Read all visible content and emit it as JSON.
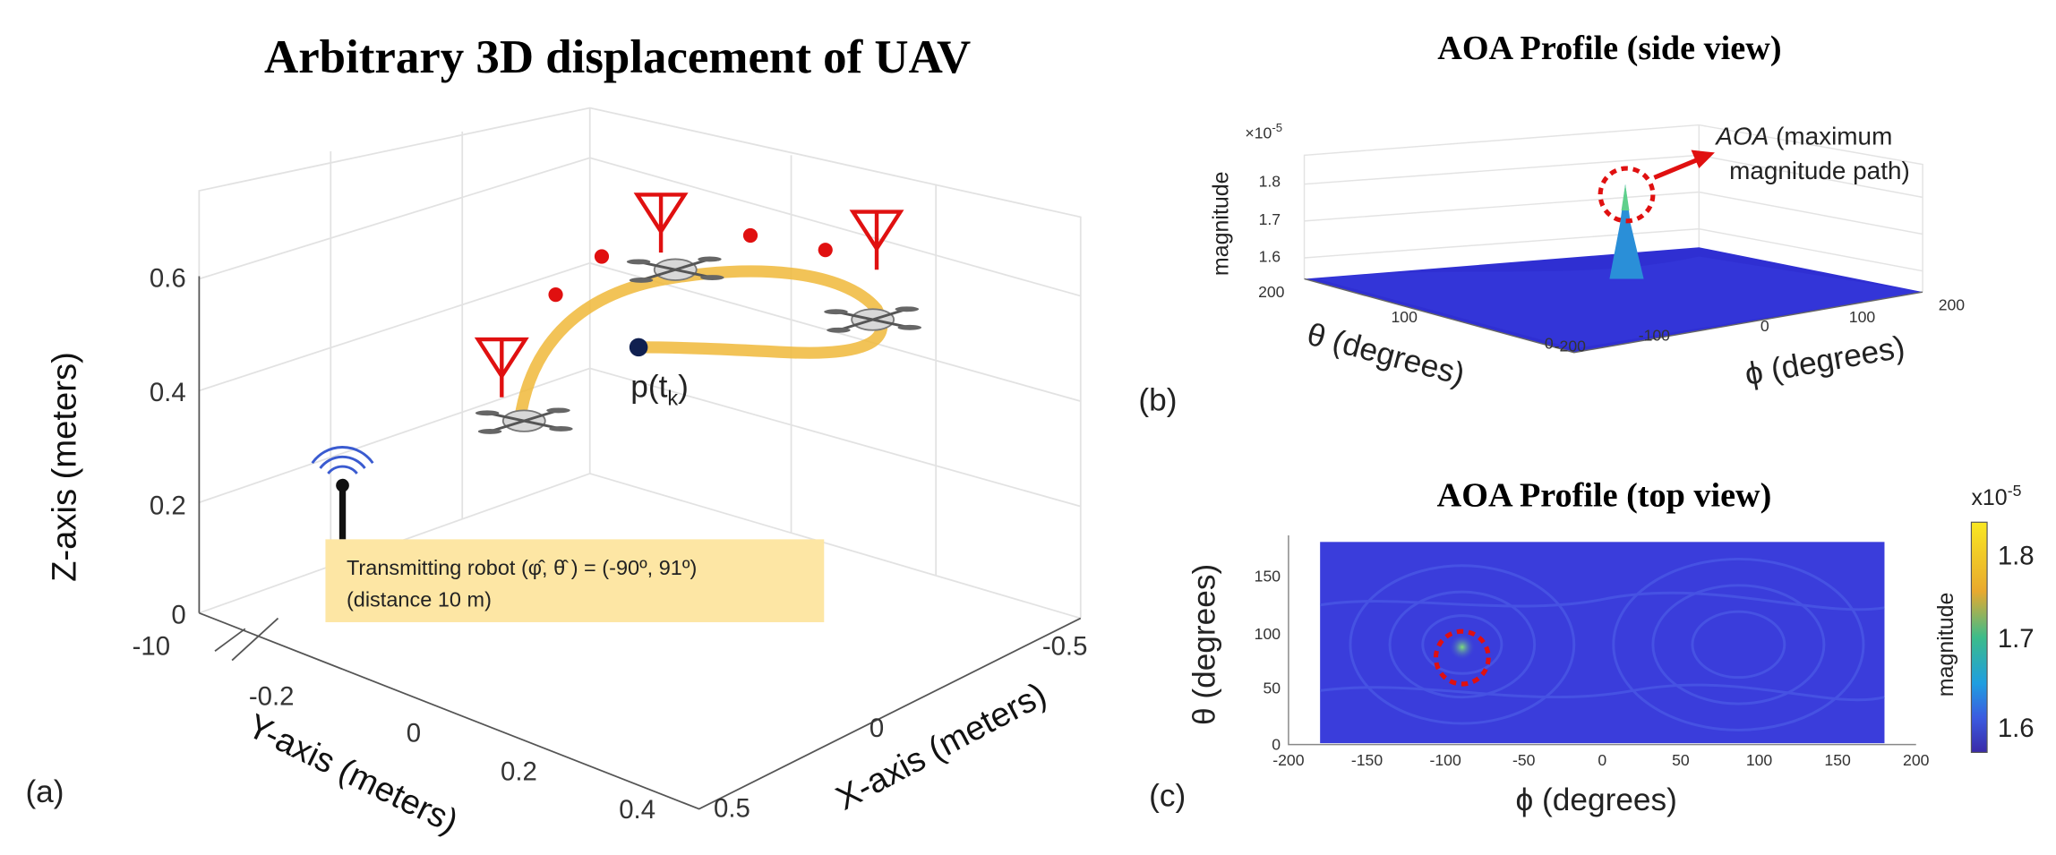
{
  "panel_a": {
    "title": "Arbitrary 3D displacement of UAV",
    "z_ticks": [
      "0.6",
      "0.4",
      "0.2",
      "0"
    ],
    "z_break": "-10",
    "z_label": "Z-axis (meters)",
    "y_ticks": [
      "-0.2",
      "0",
      "0.2",
      "0.4"
    ],
    "y_label": "Y-axis (meters)",
    "x_ticks": [
      "-0.5",
      "0",
      "0.5"
    ],
    "x_label": "X-axis (meters)",
    "position_label": {
      "base": "p(t",
      "sub": "k",
      "close": ")"
    },
    "transmitter_note": [
      "Transmitting robot (φ̂, θ̂ ) = (-90º, 91º)",
      "(distance 10 m)"
    ],
    "panel_label": "(a)"
  },
  "panel_b": {
    "title": "AOA Profile (side view)",
    "scale_base": "×10",
    "scale_exp": "-5",
    "z_ticks": [
      "1.8",
      "1.7",
      "1.6"
    ],
    "z_label": "magnitude",
    "theta_ticks": [
      "200",
      "100",
      "0"
    ],
    "theta_label": "θ (degrees)",
    "phi_ticks": [
      "-200",
      "-100",
      "0",
      "100",
      "200"
    ],
    "phi_label": "ϕ (degrees)",
    "annotation": {
      "emph": "AOA",
      "rest": " (maximum",
      "line2": "magnitude path)"
    },
    "panel_label": "(b)"
  },
  "panel_c": {
    "title": "AOA Profile (top view)",
    "y_ticks": [
      "150",
      "100",
      "50",
      "0"
    ],
    "y_label": "θ (degrees)",
    "x_ticks": [
      "-200",
      "-150",
      "-100",
      "-50",
      "0",
      "50",
      "100",
      "150",
      "200"
    ],
    "x_label": "ϕ (degrees)",
    "colorbar": {
      "base": "x10",
      "exp": "-5",
      "ticks": [
        "1.8",
        "1.7",
        "1.6"
      ],
      "label": "magnitude"
    },
    "panel_label": "(c)"
  }
}
